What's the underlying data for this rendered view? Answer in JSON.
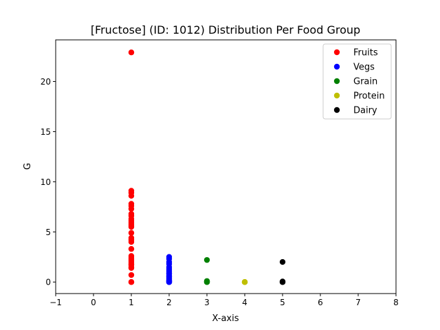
{
  "chart_data": {
    "type": "scatter",
    "title": "[Fructose] (ID: 1012) Distribution Per Food Group",
    "xlabel": "X-axis",
    "ylabel": "G",
    "xlim": [
      -1,
      8
    ],
    "ylim": [
      -1.15,
      24.15
    ],
    "xticks": [
      -1,
      0,
      1,
      2,
      3,
      4,
      5,
      6,
      7,
      8
    ],
    "yticks": [
      0,
      5,
      10,
      15,
      20
    ],
    "grid": false,
    "legend_position": "top-right",
    "series": [
      {
        "name": "Fruits",
        "color": "#ff0000",
        "x": [
          1,
          1,
          1,
          1,
          1,
          1,
          1,
          1,
          1,
          1,
          1,
          1,
          1,
          1,
          1,
          1,
          1,
          1,
          1,
          1,
          1,
          1,
          1,
          1,
          1,
          1,
          1,
          1,
          1,
          1
        ],
        "y": [
          22.9,
          9.1,
          8.9,
          8.6,
          7.8,
          7.6,
          7.3,
          6.8,
          6.6,
          6.3,
          6.1,
          5.9,
          5.7,
          5.5,
          4.9,
          4.4,
          4.2,
          4.0,
          3.3,
          2.6,
          2.4,
          2.2,
          2.0,
          1.8,
          1.7,
          1.5,
          1.4,
          0.7,
          0.0,
          0.0
        ]
      },
      {
        "name": "Vegs",
        "color": "#0000ff",
        "x": [
          2,
          2,
          2,
          2,
          2,
          2,
          2,
          2,
          2,
          2,
          2,
          2,
          2,
          2,
          2,
          2,
          2,
          2,
          2,
          2
        ],
        "y": [
          2.5,
          2.3,
          2.0,
          1.8,
          1.5,
          1.3,
          1.1,
          0.9,
          0.8,
          0.6,
          0.5,
          0.4,
          0.3,
          0.2,
          0.15,
          0.1,
          0.05,
          0.0,
          0.0,
          0.0
        ]
      },
      {
        "name": "Grain",
        "color": "#008000",
        "x": [
          3,
          3,
          3,
          3,
          3
        ],
        "y": [
          2.2,
          0.1,
          0.05,
          0.0,
          0.0
        ]
      },
      {
        "name": "Protein",
        "color": "#bfbf00",
        "x": [
          4,
          4,
          4
        ],
        "y": [
          0.0,
          0.0,
          0.0
        ]
      },
      {
        "name": "Dairy",
        "color": "#000000",
        "x": [
          5,
          5,
          5,
          5
        ],
        "y": [
          2.0,
          0.05,
          0.0,
          0.0
        ]
      }
    ]
  }
}
